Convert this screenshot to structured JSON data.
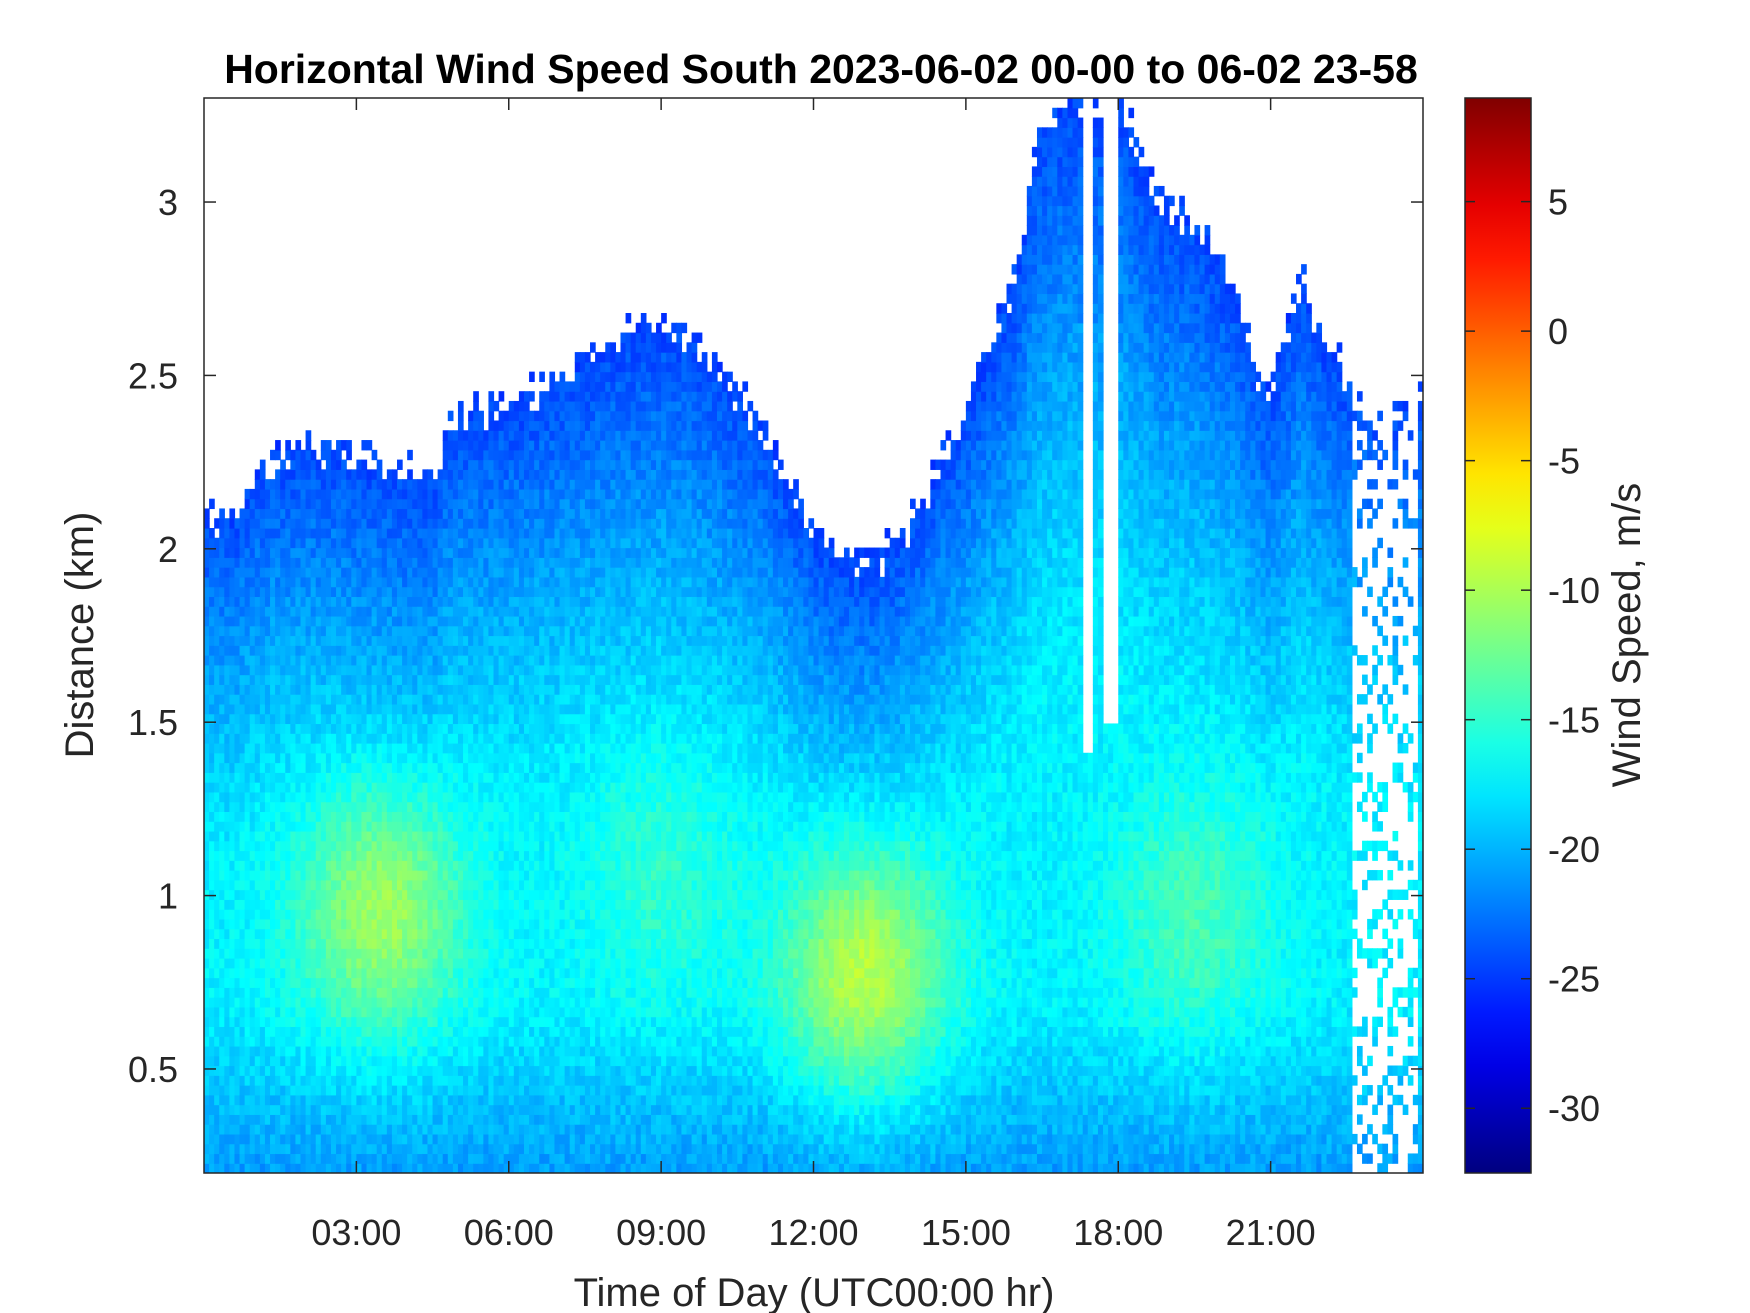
{
  "chart_data": {
    "type": "heatmap",
    "title": "Horizontal Wind Speed South 2023-06-02 00-00 to 06-02 23-58",
    "xlabel": "Time of Day (UTC00:00 hr)",
    "ylabel": "Distance (km)",
    "colorbar_label": "Wind Speed, m/s",
    "colormap": "jet",
    "xlim_hours": [
      0,
      24
    ],
    "ylim_km": [
      0.2,
      3.3
    ],
    "clim": [
      -32.5,
      9.0
    ],
    "x_ticks": [
      {
        "value": 3,
        "label": "03:00"
      },
      {
        "value": 6,
        "label": "06:00"
      },
      {
        "value": 9,
        "label": "09:00"
      },
      {
        "value": 12,
        "label": "12:00"
      },
      {
        "value": 15,
        "label": "15:00"
      },
      {
        "value": 18,
        "label": "18:00"
      },
      {
        "value": 21,
        "label": "21:00"
      }
    ],
    "y_ticks": [
      {
        "value": 0.5,
        "label": "0.5"
      },
      {
        "value": 1,
        "label": "1"
      },
      {
        "value": 1.5,
        "label": "1.5"
      },
      {
        "value": 2,
        "label": "2"
      },
      {
        "value": 2.5,
        "label": "2.5"
      },
      {
        "value": 3,
        "label": "3"
      }
    ],
    "colorbar_ticks": [
      {
        "value": 5,
        "label": "5"
      },
      {
        "value": 0,
        "label": "0"
      },
      {
        "value": -5,
        "label": "-5"
      },
      {
        "value": -10,
        "label": "-10"
      },
      {
        "value": -15,
        "label": "-15"
      },
      {
        "value": -20,
        "label": "-20"
      },
      {
        "value": -25,
        "label": "-25"
      },
      {
        "value": -30,
        "label": "-30"
      }
    ],
    "data_top_profile": {
      "hour": [
        0.0,
        0.5,
        0.8,
        1.2,
        2.0,
        2.6,
        3.2,
        4.0,
        4.6,
        4.7,
        5.0,
        6.0,
        7.0,
        7.6,
        8.2,
        9.0,
        9.6,
        10.2,
        11.0,
        11.5,
        12.0,
        12.5,
        13.0,
        13.5,
        14.0,
        14.5,
        15.0,
        15.5,
        16.0,
        16.4,
        17.0,
        17.7,
        18.0,
        18.8,
        19.5,
        20.3,
        20.8,
        21.0,
        21.3,
        21.6,
        22.0,
        22.5,
        23.0,
        23.5,
        24.0
      ],
      "top_km": [
        2.1,
        2.1,
        2.15,
        2.25,
        2.3,
        2.3,
        2.25,
        2.22,
        2.22,
        2.35,
        2.4,
        2.42,
        2.5,
        2.55,
        2.6,
        2.65,
        2.6,
        2.5,
        2.35,
        2.2,
        2.05,
        1.98,
        1.97,
        2.0,
        2.1,
        2.25,
        2.4,
        2.6,
        2.8,
        3.2,
        3.3,
        3.3,
        3.3,
        3.0,
        2.95,
        2.75,
        2.5,
        2.45,
        2.6,
        2.8,
        2.6,
        2.5,
        2.4,
        2.4,
        2.45
      ]
    },
    "wind_speed_field": {
      "background_speed": -24,
      "features": [
        {
          "name": "low-level jet",
          "hour": 3.5,
          "km": 0.95,
          "speed": -10.5
        },
        {
          "name": "low-level jet",
          "hour": 13.0,
          "km": 0.78,
          "speed": -9.5
        },
        {
          "name": "low-level jet",
          "hour": 19.5,
          "km": 0.95,
          "speed": -14
        },
        {
          "name": "low-level jet",
          "hour": 9.0,
          "km": 1.05,
          "speed": -15
        }
      ]
    },
    "data_gaps": [
      {
        "hour_from": 17.3,
        "hour_to": 17.5,
        "km_from": 1.42,
        "km_to": 3.3
      },
      {
        "hour_from": 17.75,
        "hour_to": 17.95,
        "km_from": 1.5,
        "km_to": 3.3
      },
      {
        "hour_from": 22.6,
        "hour_to": 23.9,
        "km_from": 0.2,
        "km_to": 3.3
      }
    ]
  }
}
